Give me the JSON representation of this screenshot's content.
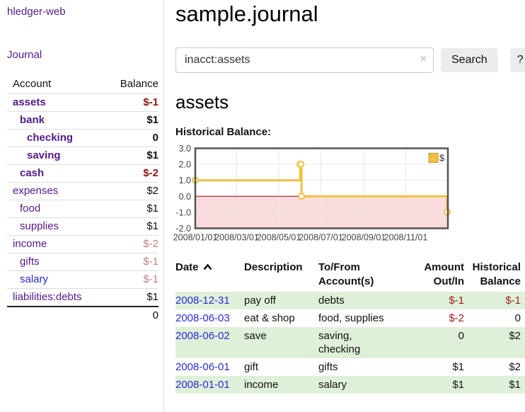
{
  "app": {
    "title": "hledger-web"
  },
  "sidebar": {
    "journal_label": "Journal",
    "accounts_table": {
      "headers": [
        "Account",
        "Balance"
      ],
      "rows": [
        {
          "account": "assets",
          "balance": "$-1"
        },
        {
          "account": "bank",
          "balance": "$1"
        },
        {
          "account": "checking",
          "balance": "0"
        },
        {
          "account": "saving",
          "balance": "$1"
        },
        {
          "account": "cash",
          "balance": "$-2"
        },
        {
          "account": "expenses",
          "balance": "$2"
        },
        {
          "account": "food",
          "balance": "$1"
        },
        {
          "account": "supplies",
          "balance": "$1"
        },
        {
          "account": "income",
          "balance": "$-2"
        },
        {
          "account": "gifts",
          "balance": "$-1"
        },
        {
          "account": "salary",
          "balance": "$-1"
        },
        {
          "account": "liabilities:debts",
          "balance": "$1"
        }
      ],
      "total": "0"
    }
  },
  "main": {
    "title": "sample.journal",
    "search": {
      "value": "inacct:assets",
      "clear_icon": "×",
      "button_label": "Search",
      "help_label": "?"
    },
    "account_heading": "assets",
    "chart_label": "Historical Balance:"
  },
  "chart_data": {
    "type": "line",
    "style": "step",
    "title": "Historical Balance:",
    "series": [
      {
        "name": "$",
        "color": "#edc240",
        "points": [
          [
            "2008-01-01",
            1
          ],
          [
            "2008-06-01",
            2
          ],
          [
            "2008-06-02",
            2
          ],
          [
            "2008-06-03",
            0
          ],
          [
            "2008-12-31",
            -1
          ]
        ]
      }
    ],
    "x_min": "2008-01-01",
    "x_max": "2009-01-01",
    "x_ticks": [
      {
        "date": "2008-01-01",
        "label": "2008/01/01"
      },
      {
        "date": "2008-03-01",
        "label": "2008/03/01"
      },
      {
        "date": "2008-05-01",
        "label": "2008/05/01"
      },
      {
        "date": "2008-07-01",
        "label": "2008/07/01"
      },
      {
        "date": "2008-09-01",
        "label": "2008/09/01"
      },
      {
        "date": "2008-11-01",
        "label": "2008/11/01"
      }
    ],
    "ylim": [
      -2,
      3
    ],
    "y_ticks": [
      "3.0",
      "2.0",
      "1.0",
      "0.0",
      "-1.0",
      "-2.0"
    ],
    "grid": true,
    "legend_position": "top-right",
    "colors": {
      "negative_fill": "#fbdcdc",
      "zero_line": "#a40000",
      "gridline": "#e7e7e7",
      "border": "#545454"
    }
  },
  "register_table": {
    "headers": [
      "Date",
      "Description",
      "To/From Account(s)",
      "Amount Out/In",
      "Historical Balance"
    ],
    "sort_icon": "chevron-up",
    "rows": [
      {
        "date": "2008-12-31",
        "description": "pay off",
        "accounts": "debts",
        "amount": "$-1",
        "balance": "$-1"
      },
      {
        "date": "2008-06-03",
        "description": "eat & shop",
        "accounts": "food, supplies",
        "amount": "$-2",
        "balance": "0"
      },
      {
        "date": "2008-06-02",
        "description": "save",
        "accounts": "saving,\nchecking",
        "amount": "0",
        "balance": "$2"
      },
      {
        "date": "2008-06-01",
        "description": "gift",
        "accounts": "gifts",
        "amount": "$1",
        "balance": "$2"
      },
      {
        "date": "2008-01-01",
        "description": "income",
        "accounts": "salary",
        "amount": "$1",
        "balance": "$1"
      }
    ]
  },
  "colors": {
    "link_purple": "#551a8b",
    "link_blue": "#2a2ad8",
    "negative_strong": "#8f1414",
    "negative_soft": "#c08080",
    "negative_register": "#9a1b1b",
    "row_highlight_green": "#dff0d8",
    "series_gold": "#edc240"
  }
}
